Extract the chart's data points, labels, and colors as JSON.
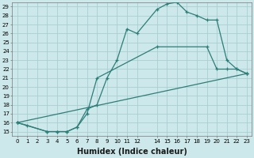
{
  "xlabel": "Humidex (Indice chaleur)",
  "ylabel": "",
  "background_color": "#cce8ea",
  "grid_color": "#aacfd2",
  "line_color": "#2d7d78",
  "xlim": [
    -0.5,
    23.5
  ],
  "ylim": [
    14.5,
    29.5
  ],
  "xticks": [
    0,
    1,
    2,
    3,
    4,
    5,
    6,
    7,
    8,
    9,
    10,
    11,
    12,
    14,
    15,
    16,
    17,
    18,
    19,
    20,
    21,
    22,
    23
  ],
  "yticks": [
    15,
    16,
    17,
    18,
    19,
    20,
    21,
    22,
    23,
    24,
    25,
    26,
    27,
    28,
    29
  ],
  "line1_x": [
    0,
    1,
    3,
    4,
    5,
    6,
    7,
    8,
    9,
    10,
    11,
    12,
    14,
    15,
    16,
    17,
    18,
    19,
    20,
    21,
    22,
    23
  ],
  "line1_y": [
    16.0,
    15.7,
    15.0,
    15.0,
    15.0,
    15.5,
    17.5,
    18.0,
    21.0,
    23.0,
    26.5,
    26.0,
    28.7,
    29.3,
    29.5,
    28.4,
    28.0,
    27.5,
    27.5,
    23.0,
    22.0,
    21.5
  ],
  "line2_x": [
    0,
    3,
    4,
    5,
    6,
    7,
    8,
    14,
    19,
    20,
    21,
    22,
    23
  ],
  "line2_y": [
    16.0,
    15.0,
    15.0,
    15.0,
    15.5,
    17.0,
    21.0,
    24.5,
    24.5,
    22.0,
    22.0,
    22.0,
    21.5
  ],
  "line3_x": [
    0,
    23
  ],
  "line3_y": [
    16.0,
    21.5
  ],
  "xlabel_fontsize": 7,
  "tick_fontsize": 5
}
